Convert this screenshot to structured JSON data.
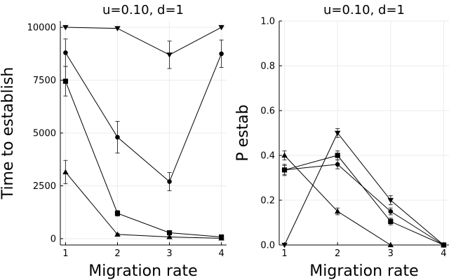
{
  "chart_data": [
    {
      "type": "line",
      "title": "u=0.10, d=1",
      "xlabel": "Migration rate",
      "ylabel": "Time to establish",
      "x": [
        1,
        2,
        3,
        4
      ],
      "xticks": [
        "1",
        "2",
        "3",
        "4"
      ],
      "yticks": [
        "0",
        "2500",
        "5000",
        "7500",
        "10000"
      ],
      "xlim": [
        0.9,
        4.1
      ],
      "ylim": [
        -300,
        10300
      ],
      "grid": true,
      "series": [
        {
          "marker": "triangle-down",
          "values": [
            10000,
            9950,
            8700,
            10000
          ],
          "errors": [
            0,
            0,
            650,
            0
          ]
        },
        {
          "marker": "circle",
          "values": [
            8800,
            4800,
            2700,
            8750
          ],
          "errors": [
            650,
            750,
            430,
            650
          ]
        },
        {
          "marker": "square",
          "values": [
            7450,
            1200,
            280,
            80
          ],
          "errors": [
            700,
            130,
            60,
            30
          ]
        },
        {
          "marker": "triangle-up",
          "values": [
            3150,
            200,
            80,
            20
          ],
          "errors": [
            550,
            40,
            20,
            5
          ]
        }
      ]
    },
    {
      "type": "line",
      "title": "u=0.10, d=1",
      "xlabel": "Migration rate",
      "ylabel": "P estab",
      "x": [
        1,
        2,
        3,
        4
      ],
      "xticks": [
        "1",
        "2",
        "3",
        "4"
      ],
      "yticks": [
        "0.0",
        "0.2",
        "0.4",
        "0.6",
        "0.8",
        "1.0"
      ],
      "xlim": [
        0.9,
        4.1
      ],
      "ylim": [
        0,
        1
      ],
      "grid": true,
      "series": [
        {
          "marker": "triangle-down",
          "values": [
            0.0,
            0.5,
            0.2,
            0.0
          ],
          "errors": [
            0,
            0.02,
            0.02,
            0
          ]
        },
        {
          "marker": "circle",
          "values": [
            0.335,
            0.36,
            0.15,
            0.0
          ],
          "errors": [
            0.02,
            0.02,
            0.015,
            0
          ]
        },
        {
          "marker": "square",
          "values": [
            0.335,
            0.4,
            0.105,
            0.0
          ],
          "errors": [
            0.025,
            0.02,
            0.015,
            0
          ]
        },
        {
          "marker": "triangle-up",
          "values": [
            0.4,
            0.15,
            0.0,
            0.0
          ],
          "errors": [
            0.02,
            0.015,
            0,
            0
          ]
        }
      ]
    }
  ]
}
